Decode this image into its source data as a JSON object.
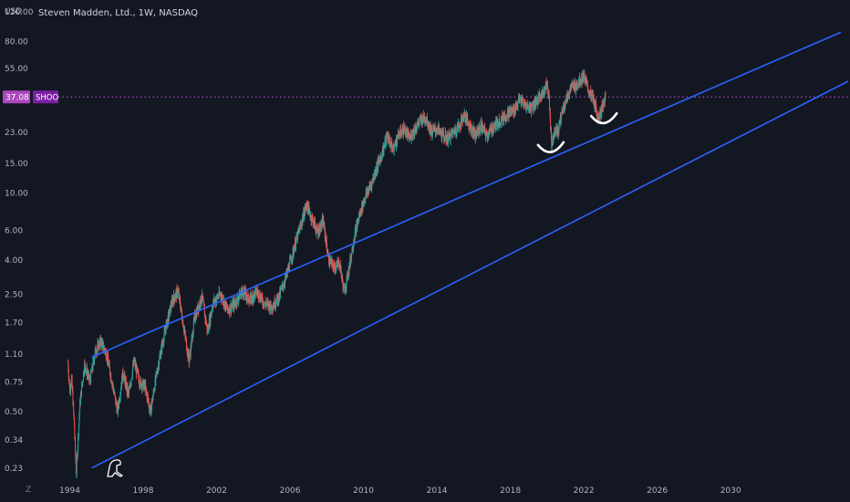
{
  "header": {
    "title": "Steven Madden, Ltd., 1W, NASDAQ",
    "currency": "USD"
  },
  "timezone_label": "Z",
  "colors": {
    "background": "#131722",
    "up_candle": "#26a69a",
    "down_candle": "#ef5350",
    "channel_line": "#2962ff",
    "price_line": "#ab47bc",
    "annotation": "#ffffff",
    "axis_text": "#b2b5be"
  },
  "chart_data": {
    "type": "candlestick",
    "title": "Steven Madden, Ltd., 1W, NASDAQ",
    "xlabel": "",
    "ylabel": "USD",
    "y_scale": "log",
    "ylim": [
      0.21,
      140
    ],
    "xlim": [
      1990.2,
      2036.5
    ],
    "y_ticks": [
      "120.00",
      "80.00",
      "55.00",
      "37.08",
      "23.00",
      "15.00",
      "10.00",
      "6.00",
      "4.00",
      "2.50",
      "1.70",
      "1.10",
      "0.75",
      "0.50",
      "0.34",
      "0.23"
    ],
    "x_ticks": [
      "1994",
      "1998",
      "2002",
      "2006",
      "2010",
      "2014",
      "2018",
      "2022",
      "2026",
      "2030"
    ],
    "last_price": {
      "value": 37.08,
      "label": "37.08",
      "symbol": "SHOO"
    },
    "price_path": [
      [
        1993.9,
        0.98
      ],
      [
        1994.0,
        0.66
      ],
      [
        1994.1,
        0.8
      ],
      [
        1994.25,
        0.4
      ],
      [
        1994.35,
        0.21
      ],
      [
        1994.55,
        0.55
      ],
      [
        1994.8,
        0.95
      ],
      [
        1995.1,
        0.75
      ],
      [
        1995.4,
        1.15
      ],
      [
        1995.7,
        1.3
      ],
      [
        1996.0,
        1.1
      ],
      [
        1996.3,
        0.75
      ],
      [
        1996.6,
        0.5
      ],
      [
        1996.9,
        0.85
      ],
      [
        1997.2,
        0.62
      ],
      [
        1997.5,
        1.0
      ],
      [
        1997.8,
        0.75
      ],
      [
        1998.1,
        0.7
      ],
      [
        1998.4,
        0.5
      ],
      [
        1998.7,
        0.8
      ],
      [
        1999.0,
        1.2
      ],
      [
        1999.3,
        1.7
      ],
      [
        1999.6,
        2.3
      ],
      [
        1999.9,
        2.6
      ],
      [
        2000.2,
        1.6
      ],
      [
        2000.5,
        1.0
      ],
      [
        2000.8,
        1.8
      ],
      [
        2001.2,
        2.4
      ],
      [
        2001.5,
        1.5
      ],
      [
        2001.8,
        2.2
      ],
      [
        2002.2,
        2.5
      ],
      [
        2002.6,
        2.0
      ],
      [
        2003.0,
        2.2
      ],
      [
        2003.4,
        2.6
      ],
      [
        2003.8,
        2.3
      ],
      [
        2004.2,
        2.6
      ],
      [
        2004.6,
        2.2
      ],
      [
        2005.0,
        2.1
      ],
      [
        2005.4,
        2.4
      ],
      [
        2005.8,
        3.2
      ],
      [
        2006.2,
        4.6
      ],
      [
        2006.6,
        6.5
      ],
      [
        2006.9,
        8.5
      ],
      [
        2007.2,
        7.0
      ],
      [
        2007.5,
        5.8
      ],
      [
        2007.8,
        6.8
      ],
      [
        2008.1,
        4.0
      ],
      [
        2008.4,
        3.6
      ],
      [
        2008.7,
        3.8
      ],
      [
        2008.95,
        2.55
      ],
      [
        2009.2,
        3.5
      ],
      [
        2009.5,
        5.5
      ],
      [
        2009.8,
        7.5
      ],
      [
        2010.1,
        9.5
      ],
      [
        2010.4,
        11.0
      ],
      [
        2010.7,
        14.0
      ],
      [
        2011.0,
        17.0
      ],
      [
        2011.3,
        22.0
      ],
      [
        2011.6,
        18.0
      ],
      [
        2011.9,
        22.0
      ],
      [
        2012.2,
        24.0
      ],
      [
        2012.5,
        21.0
      ],
      [
        2012.8,
        24.0
      ],
      [
        2013.1,
        27.0
      ],
      [
        2013.4,
        28.0
      ],
      [
        2013.7,
        23.0
      ],
      [
        2014.0,
        24.0
      ],
      [
        2014.3,
        22.0
      ],
      [
        2014.6,
        21.0
      ],
      [
        2014.9,
        23.0
      ],
      [
        2015.2,
        25.0
      ],
      [
        2015.5,
        29.0
      ],
      [
        2015.8,
        25.0
      ],
      [
        2016.1,
        22.0
      ],
      [
        2016.4,
        25.0
      ],
      [
        2016.7,
        22.0
      ],
      [
        2017.0,
        24.0
      ],
      [
        2017.3,
        26.0
      ],
      [
        2017.6,
        28.0
      ],
      [
        2017.9,
        30.0
      ],
      [
        2018.2,
        31.0
      ],
      [
        2018.5,
        36.0
      ],
      [
        2018.8,
        33.0
      ],
      [
        2019.1,
        32.0
      ],
      [
        2019.4,
        35.0
      ],
      [
        2019.7,
        38.0
      ],
      [
        2019.95,
        44.0
      ],
      [
        2020.1,
        38.0
      ],
      [
        2020.25,
        19.0
      ],
      [
        2020.4,
        24.0
      ],
      [
        2020.6,
        23.0
      ],
      [
        2020.8,
        30.0
      ],
      [
        2021.0,
        35.0
      ],
      [
        2021.3,
        42.0
      ],
      [
        2021.6,
        44.0
      ],
      [
        2021.9,
        48.0
      ],
      [
        2022.0,
        50.0
      ],
      [
        2022.2,
        42.0
      ],
      [
        2022.5,
        36.0
      ],
      [
        2022.8,
        28.0
      ],
      [
        2023.0,
        32.0
      ],
      [
        2023.2,
        37.08
      ]
    ],
    "channel_lines": [
      {
        "name": "",
        "points": [
          [
            1995.2,
            1.05
          ],
          [
            2036.0,
            90.0
          ]
        ]
      },
      {
        "name": "",
        "points": [
          [
            1995.2,
            0.23
          ],
          [
            2036.4,
            46.0
          ]
        ]
      }
    ],
    "annotations": [
      {
        "type": "arc",
        "center": [
          2020.2,
          18.5
        ]
      },
      {
        "type": "arc",
        "center": [
          2023.1,
          27.5
        ]
      }
    ]
  }
}
